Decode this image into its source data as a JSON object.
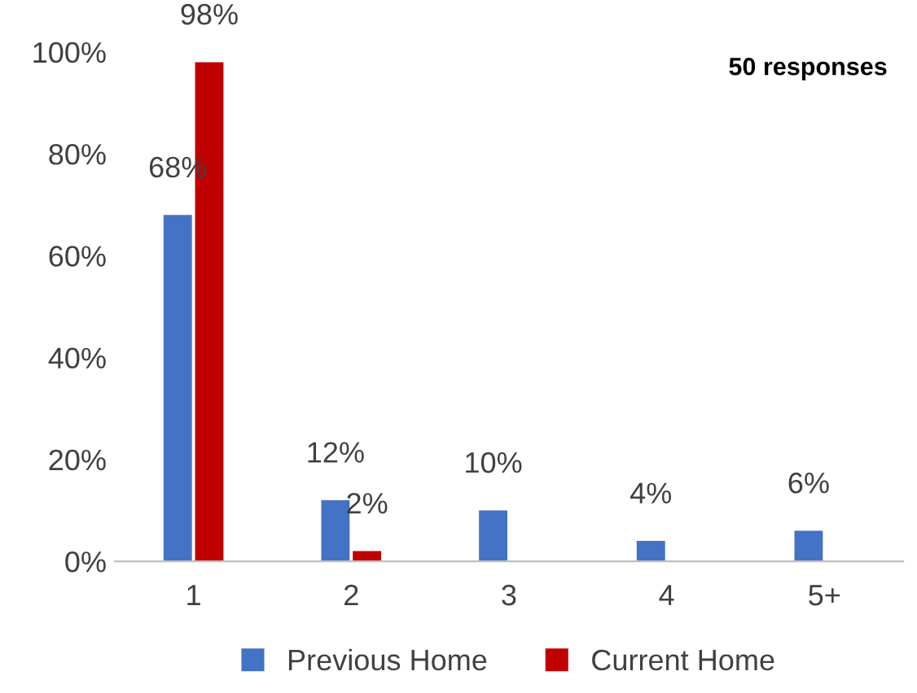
{
  "chart_data": {
    "type": "bar",
    "categories": [
      "1",
      "2",
      "3",
      "4",
      "5+"
    ],
    "series": [
      {
        "name": "Previous Home",
        "color": "#4472c4",
        "values": [
          68,
          12,
          10,
          4,
          6
        ],
        "value_labels": [
          "68%",
          "12%",
          "10%",
          "4%",
          "6%"
        ]
      },
      {
        "name": "Current Home",
        "color": "#c00000",
        "values": [
          98,
          2,
          null,
          null,
          null
        ],
        "value_labels": [
          "98%",
          "2%",
          null,
          null,
          null
        ]
      }
    ],
    "ylim": [
      0,
      100
    ],
    "yticks": [
      {
        "value": 0,
        "label": "0%"
      },
      {
        "value": 20,
        "label": "20%"
      },
      {
        "value": 40,
        "label": "40%"
      },
      {
        "value": 60,
        "label": "60%"
      },
      {
        "value": 80,
        "label": "80%"
      },
      {
        "value": 100,
        "label": "100%"
      }
    ],
    "annotations": [
      "50 responses"
    ],
    "legend": "bottom",
    "grid": false
  }
}
